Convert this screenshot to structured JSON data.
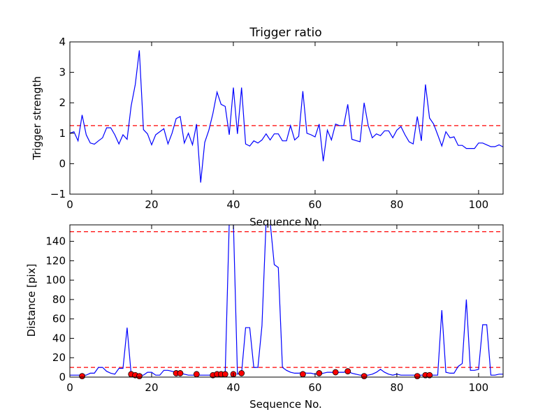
{
  "colors": {
    "line": "#0000ff",
    "threshold": "#ff0000",
    "marker_fill": "#ff0000",
    "marker_edge": "#000000",
    "axes": "#000000",
    "background": "#ffffff"
  },
  "chart_data": [
    {
      "type": "line",
      "title": "Trigger ratio",
      "xlabel": "Sequence No.",
      "ylabel": "Trigger strength",
      "xlim": [
        0,
        106
      ],
      "ylim": [
        -1,
        4
      ],
      "xticks": [
        0,
        20,
        40,
        60,
        80,
        100
      ],
      "xticklabels": [
        "0",
        "20",
        "40",
        "60",
        "80",
        "100"
      ],
      "yticks": [
        -1,
        0,
        1,
        2,
        3,
        4
      ],
      "yticklabels": [
        "−1",
        "0",
        "1",
        "2",
        "3",
        "4"
      ],
      "grid": false,
      "series": [
        {
          "x": [
            0,
            1,
            2,
            3,
            4,
            5,
            6,
            7,
            8,
            9,
            10,
            11,
            12,
            13,
            14,
            15,
            16,
            17,
            18,
            19,
            20,
            21,
            22,
            23,
            24,
            25,
            26,
            27,
            28,
            29,
            30,
            31,
            32,
            33,
            34,
            35,
            36,
            37,
            38,
            39,
            40,
            41,
            42,
            43,
            44,
            45,
            46,
            47,
            48,
            49,
            50,
            51,
            52,
            53,
            54,
            55,
            56,
            57,
            58,
            59,
            60,
            61,
            62,
            63,
            64,
            65,
            66,
            67,
            68,
            69,
            70,
            71,
            72,
            73,
            74,
            75,
            76,
            77,
            78,
            79,
            80,
            81,
            82,
            83,
            84,
            85,
            86,
            87,
            88,
            89,
            90,
            91,
            92,
            93,
            94,
            95,
            96,
            97,
            98,
            99,
            100,
            101,
            102,
            103,
            104,
            105,
            106
          ],
          "y": [
            1.0,
            1.05,
            0.75,
            1.6,
            0.95,
            0.68,
            0.64,
            0.75,
            0.85,
            1.18,
            1.18,
            0.95,
            0.65,
            0.95,
            0.8,
            1.9,
            2.6,
            3.72,
            1.12,
            0.98,
            0.62,
            0.95,
            1.05,
            1.15,
            0.65,
            1.0,
            1.48,
            1.55,
            0.68,
            1.0,
            0.62,
            1.3,
            -0.62,
            0.7,
            1.1,
            1.65,
            2.35,
            1.95,
            1.88,
            0.95,
            2.5,
            0.98,
            2.5,
            0.65,
            0.58,
            0.75,
            0.68,
            0.78,
            0.98,
            0.78,
            0.98,
            0.98,
            0.75,
            0.75,
            1.25,
            0.78,
            0.9,
            2.38,
            1.0,
            0.95,
            0.88,
            1.3,
            0.08,
            1.1,
            0.78,
            1.3,
            1.25,
            1.25,
            1.95,
            0.8,
            0.76,
            0.72,
            2.0,
            1.25,
            0.85,
            0.98,
            0.92,
            1.08,
            1.08,
            0.85,
            1.1,
            1.22,
            0.95,
            0.72,
            0.65,
            1.55,
            0.75,
            2.6,
            1.5,
            1.3,
            0.95,
            0.58,
            1.05,
            0.85,
            0.88,
            0.6,
            0.6,
            0.5,
            0.5,
            0.5,
            0.68,
            0.68,
            0.62,
            0.56,
            0.56,
            0.62,
            0.55
          ]
        }
      ],
      "hlines": [
        1.25
      ]
    },
    {
      "type": "line",
      "title": "",
      "xlabel": "Sequence No.",
      "ylabel": "Distance [pix]",
      "xlim": [
        0,
        106
      ],
      "ylim": [
        0,
        157
      ],
      "xticks": [
        0,
        20,
        40,
        60,
        80,
        100
      ],
      "xticklabels": [
        "0",
        "20",
        "40",
        "60",
        "80",
        "100"
      ],
      "yticks": [
        0,
        20,
        40,
        60,
        80,
        100,
        120,
        140
      ],
      "yticklabels": [
        "0",
        "20",
        "40",
        "60",
        "80",
        "100",
        "120",
        "140"
      ],
      "grid": false,
      "series": [
        {
          "x": [
            0,
            1,
            2,
            3,
            4,
            5,
            6,
            7,
            8,
            9,
            10,
            11,
            12,
            13,
            14,
            15,
            16,
            17,
            18,
            19,
            20,
            21,
            22,
            23,
            24,
            25,
            26,
            27,
            28,
            29,
            30,
            31,
            32,
            33,
            34,
            35,
            36,
            37,
            38,
            39,
            40,
            41,
            42,
            43,
            44,
            45,
            46,
            47,
            48,
            49,
            50,
            51,
            52,
            53,
            54,
            55,
            56,
            57,
            58,
            59,
            60,
            61,
            62,
            63,
            64,
            65,
            66,
            67,
            68,
            69,
            70,
            71,
            72,
            73,
            74,
            75,
            76,
            77,
            78,
            79,
            80,
            81,
            82,
            83,
            84,
            85,
            86,
            87,
            88,
            89,
            90,
            91,
            92,
            93,
            94,
            95,
            96,
            97,
            98,
            99,
            100,
            101,
            102,
            103,
            104,
            105,
            106
          ],
          "y": [
            2,
            2,
            2,
            2,
            2,
            4,
            4,
            10,
            10,
            6,
            4,
            3,
            9,
            9,
            51,
            3,
            2,
            2,
            2,
            5,
            5,
            2,
            2,
            7,
            7,
            6,
            5,
            4,
            3,
            2,
            2,
            2,
            2,
            2,
            2,
            2,
            3,
            3,
            4,
            160,
            160,
            3,
            4,
            51,
            51,
            10,
            10,
            53,
            160,
            160,
            116,
            113,
            10,
            7,
            5,
            4,
            4,
            5,
            4,
            4,
            3,
            3,
            4,
            5,
            5,
            4,
            5,
            5,
            6,
            4,
            3,
            2,
            2,
            2,
            3,
            5,
            8,
            5,
            3,
            2,
            3,
            2,
            2,
            2,
            2,
            2,
            2,
            2,
            2,
            2,
            2,
            69,
            5,
            4,
            4,
            11,
            14,
            80,
            7,
            7,
            8,
            54,
            54,
            2,
            2,
            3,
            3
          ]
        }
      ],
      "markers": {
        "x": [
          3,
          15,
          16,
          17,
          26,
          27,
          31,
          35,
          36,
          37,
          38,
          40,
          42,
          57,
          61,
          65,
          68,
          72,
          85,
          87,
          88
        ],
        "y": [
          1,
          3,
          2,
          1,
          4,
          4,
          3,
          2,
          3,
          3,
          3,
          3,
          4,
          3,
          4,
          5,
          6,
          1,
          1,
          2,
          2
        ]
      },
      "hlines": [
        10,
        150
      ]
    }
  ]
}
